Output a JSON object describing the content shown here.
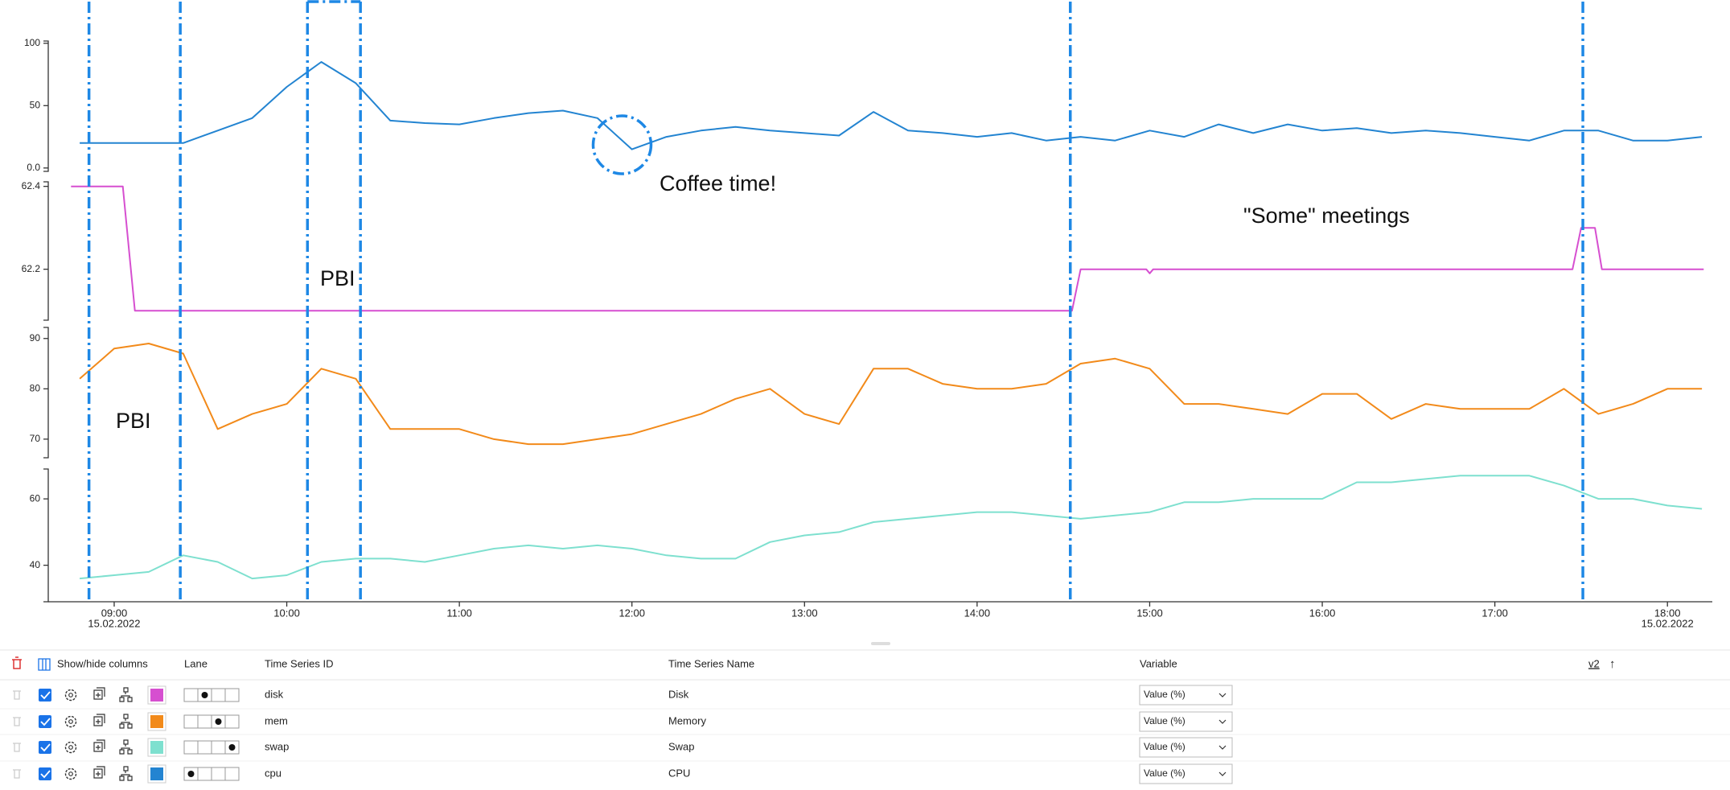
{
  "chart_data": [
    {
      "type": "line",
      "color": "#2384d1",
      "x": [
        8.8,
        9.0,
        9.2,
        9.4,
        9.6,
        9.8,
        10.0,
        10.2,
        10.4,
        10.6,
        10.8,
        11.0,
        11.2,
        11.4,
        11.6,
        11.8,
        12.0,
        12.2,
        12.4,
        12.6,
        12.8,
        13.0,
        13.2,
        13.4,
        13.6,
        13.8,
        14.0,
        14.2,
        14.4,
        14.6,
        14.8,
        15.0,
        15.2,
        15.4,
        15.6,
        15.8,
        16.0,
        16.2,
        16.4,
        16.6,
        16.8,
        17.0,
        17.2,
        17.4,
        17.6,
        17.8,
        18.0,
        18.2
      ],
      "values": [
        20,
        20,
        20,
        20,
        30,
        40,
        65,
        85,
        68,
        38,
        36,
        35,
        40,
        44,
        46,
        40,
        15,
        25,
        30,
        33,
        30,
        28,
        26,
        45,
        30,
        28,
        25,
        28,
        22,
        25,
        22,
        30,
        25,
        35,
        28,
        35,
        30,
        32,
        28,
        30,
        28,
        25,
        22,
        30,
        30,
        22,
        22,
        25
      ],
      "xlim": [
        8.618,
        18.26
      ],
      "ylim": [
        -2.7,
        101.8
      ],
      "yticks": [
        100,
        50,
        {
          "value": 0,
          "label": "0.0"
        }
      ]
    },
    {
      "type": "line",
      "color": "#d64fd0",
      "x": [
        8.75,
        9.05,
        9.12,
        14.55,
        14.6,
        14.98,
        15.0,
        15.02,
        17.45,
        17.5,
        17.58,
        17.62,
        18.21
      ],
      "values": [
        62.4,
        62.4,
        62.1,
        62.1,
        62.2,
        62.2,
        62.19,
        62.2,
        62.2,
        62.3,
        62.3,
        62.2,
        62.2
      ],
      "xlim": [
        8.618,
        18.26
      ],
      "ylim": [
        62.077,
        62.411
      ],
      "yticks": [
        62.4,
        62.2
      ]
    },
    {
      "type": "line",
      "color": "#f28a1a",
      "x": [
        8.8,
        9.0,
        9.2,
        9.4,
        9.6,
        9.8,
        10.0,
        10.2,
        10.4,
        10.6,
        10.8,
        11.0,
        11.2,
        11.4,
        11.6,
        11.8,
        12.0,
        12.2,
        12.4,
        12.6,
        12.8,
        13.0,
        13.2,
        13.4,
        13.6,
        13.8,
        14.0,
        14.2,
        14.4,
        14.6,
        14.8,
        15.0,
        15.2,
        15.4,
        15.6,
        15.8,
        16.0,
        16.2,
        16.4,
        16.6,
        16.8,
        17.0,
        17.2,
        17.4,
        17.6,
        17.8,
        18.0,
        18.2
      ],
      "values": [
        82,
        88,
        89,
        87,
        72,
        75,
        77,
        84,
        82,
        72,
        72,
        72,
        70,
        69,
        69,
        70,
        71,
        73,
        75,
        78,
        80,
        75,
        73,
        84,
        84,
        81,
        80,
        80,
        81,
        85,
        86,
        84,
        77,
        77,
        76,
        75,
        79,
        79,
        74,
        77,
        76,
        76,
        76,
        80,
        75,
        77,
        80,
        80
      ],
      "xlim": [
        8.618,
        18.26
      ],
      "ylim": [
        66.3,
        92.2
      ],
      "yticks": [
        90,
        80,
        70
      ]
    },
    {
      "type": "line",
      "color": "#7ee0cf",
      "x": [
        8.8,
        9.0,
        9.2,
        9.4,
        9.6,
        9.8,
        10.0,
        10.2,
        10.4,
        10.6,
        10.8,
        11.0,
        11.2,
        11.4,
        11.6,
        11.8,
        12.0,
        12.2,
        12.4,
        12.6,
        12.8,
        13.0,
        13.2,
        13.4,
        13.6,
        13.8,
        14.0,
        14.2,
        14.4,
        14.6,
        14.8,
        15.0,
        15.2,
        15.4,
        15.6,
        15.8,
        16.0,
        16.2,
        16.4,
        16.6,
        16.8,
        17.0,
        17.2,
        17.4,
        17.6,
        17.8,
        18.0,
        18.2
      ],
      "values": [
        36,
        37,
        38,
        43,
        41,
        36,
        37,
        41,
        42,
        42,
        41,
        43,
        45,
        46,
        45,
        46,
        45,
        43,
        42,
        42,
        47,
        49,
        50,
        53,
        54,
        55,
        56,
        56,
        55,
        54,
        55,
        56,
        59,
        59,
        60,
        60,
        60,
        65,
        65,
        66,
        67,
        67,
        67,
        64,
        60,
        60,
        58,
        57
      ],
      "xlim": [
        8.618,
        18.26
      ],
      "ylim": [
        29,
        69
      ],
      "yticks": [
        60,
        40
      ],
      "xticks": [
        {
          "value": 9,
          "label": "09:00",
          "sublabel": "15.02.2022"
        },
        {
          "value": 10,
          "label": "10:00"
        },
        {
          "value": 11,
          "label": "11:00"
        },
        {
          "value": 12,
          "label": "12:00"
        },
        {
          "value": 13,
          "label": "13:00"
        },
        {
          "value": 14,
          "label": "14:00"
        },
        {
          "value": 15,
          "label": "15:00"
        },
        {
          "value": 16,
          "label": "16:00"
        },
        {
          "value": 17,
          "label": "17:00"
        },
        {
          "value": 18,
          "label": "18:00",
          "sublabel": "15.02.2022"
        }
      ]
    }
  ],
  "annotations": [
    "Coffee time!",
    "PBI",
    "PBI",
    "\"Some\" meetings"
  ],
  "table": {
    "toolbar": "Show/hide columns",
    "columns": [
      "Lane",
      "Time Series ID",
      "Time Series Name",
      "Variable"
    ],
    "sort": {
      "label": "v2",
      "arrow": "↑"
    },
    "rows": [
      {
        "color": "#d64fd0",
        "lane": 2,
        "id": "disk",
        "name": "Disk",
        "variable": "Value (%)"
      },
      {
        "color": "#f28a1a",
        "lane": 3,
        "id": "mem",
        "name": "Memory",
        "variable": "Value (%)"
      },
      {
        "color": "#7ee0cf",
        "lane": 4,
        "id": "swap",
        "name": "Swap",
        "variable": "Value (%)"
      },
      {
        "color": "#2384d1",
        "lane": 1,
        "id": "cpu",
        "name": "CPU",
        "variable": "Value (%)"
      }
    ]
  }
}
